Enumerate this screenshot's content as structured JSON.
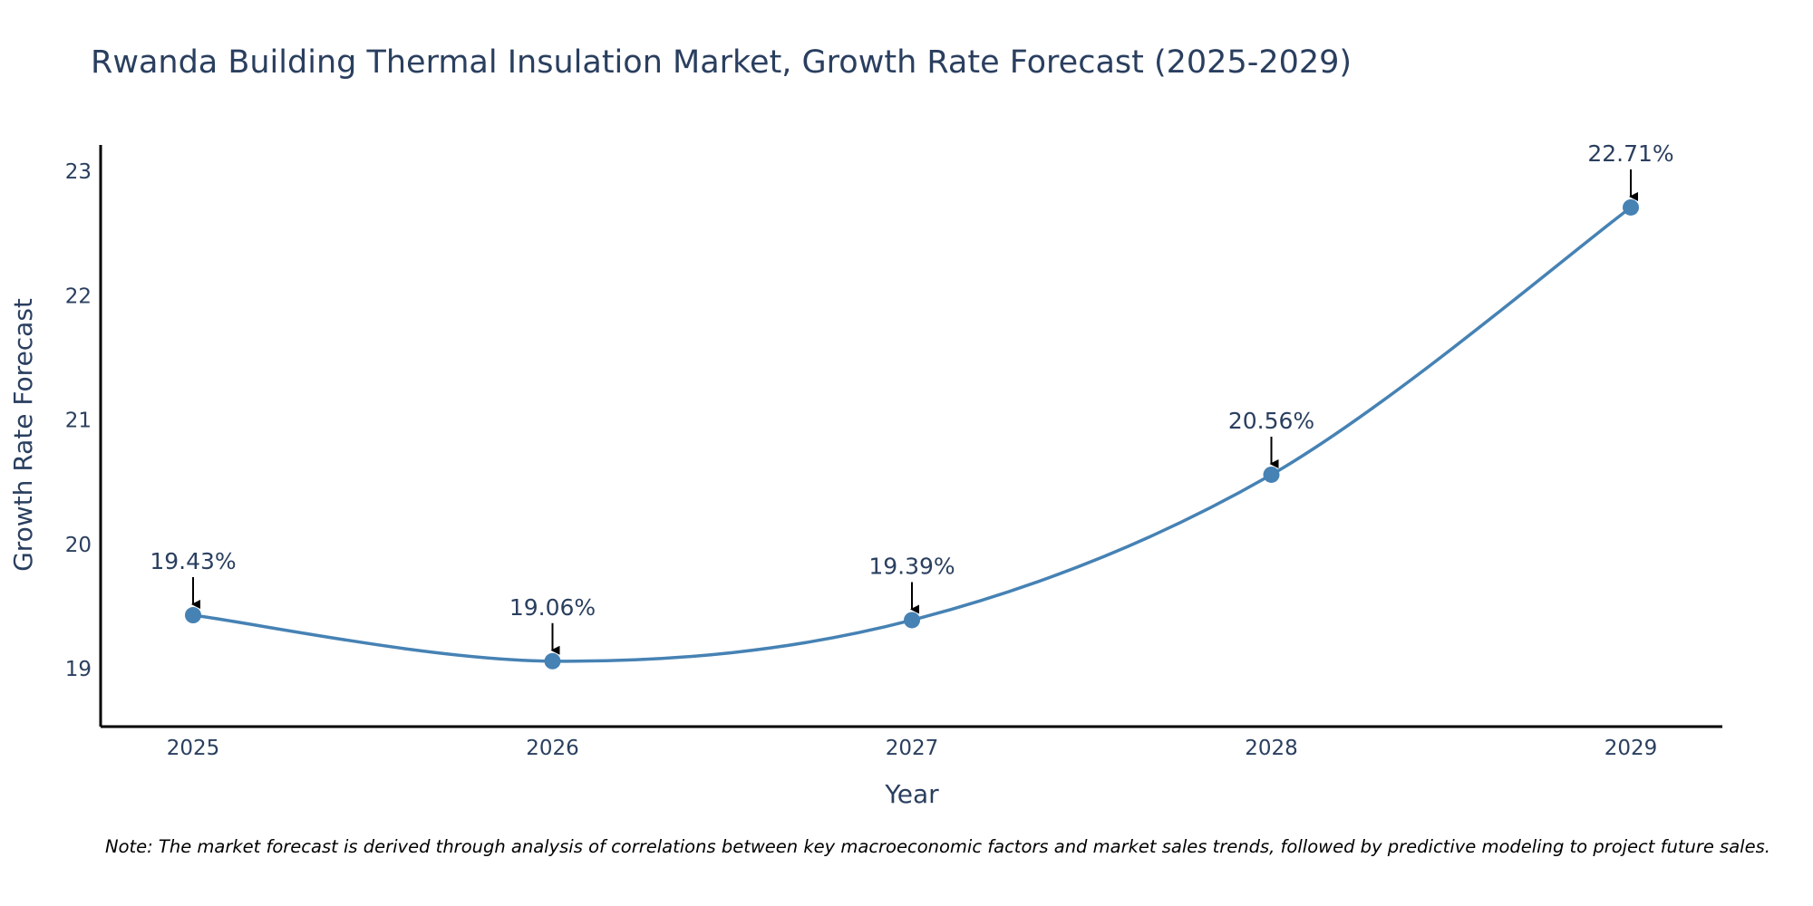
{
  "chart_data": {
    "type": "line",
    "title": "Rwanda Building Thermal Insulation Market, Growth Rate Forecast (2025-2029)",
    "xlabel": "Year",
    "ylabel": "Growth Rate Forecast",
    "categories": [
      "2025",
      "2026",
      "2027",
      "2028",
      "2029"
    ],
    "series": [
      {
        "name": "Growth Rate Forecast",
        "values": [
          19.43,
          19.06,
          19.39,
          20.56,
          22.71
        ]
      }
    ],
    "annotations": [
      "19.43%",
      "19.06%",
      "19.39%",
      "20.56%",
      "22.71%"
    ],
    "yticks": [
      19,
      20,
      21,
      22,
      23
    ],
    "ylim": [
      18.55,
      23.2
    ],
    "grid": false,
    "line_shape": "spline",
    "colors": {
      "line": "#4682b4",
      "marker": "#4682b4",
      "text": "#2a3f5f",
      "axis": "#000000",
      "arrow": "#000000"
    },
    "note": "Note: The market forecast is derived through analysis of correlations between key macroeconomic factors and market sales trends, followed by predictive modeling to project future sales."
  }
}
